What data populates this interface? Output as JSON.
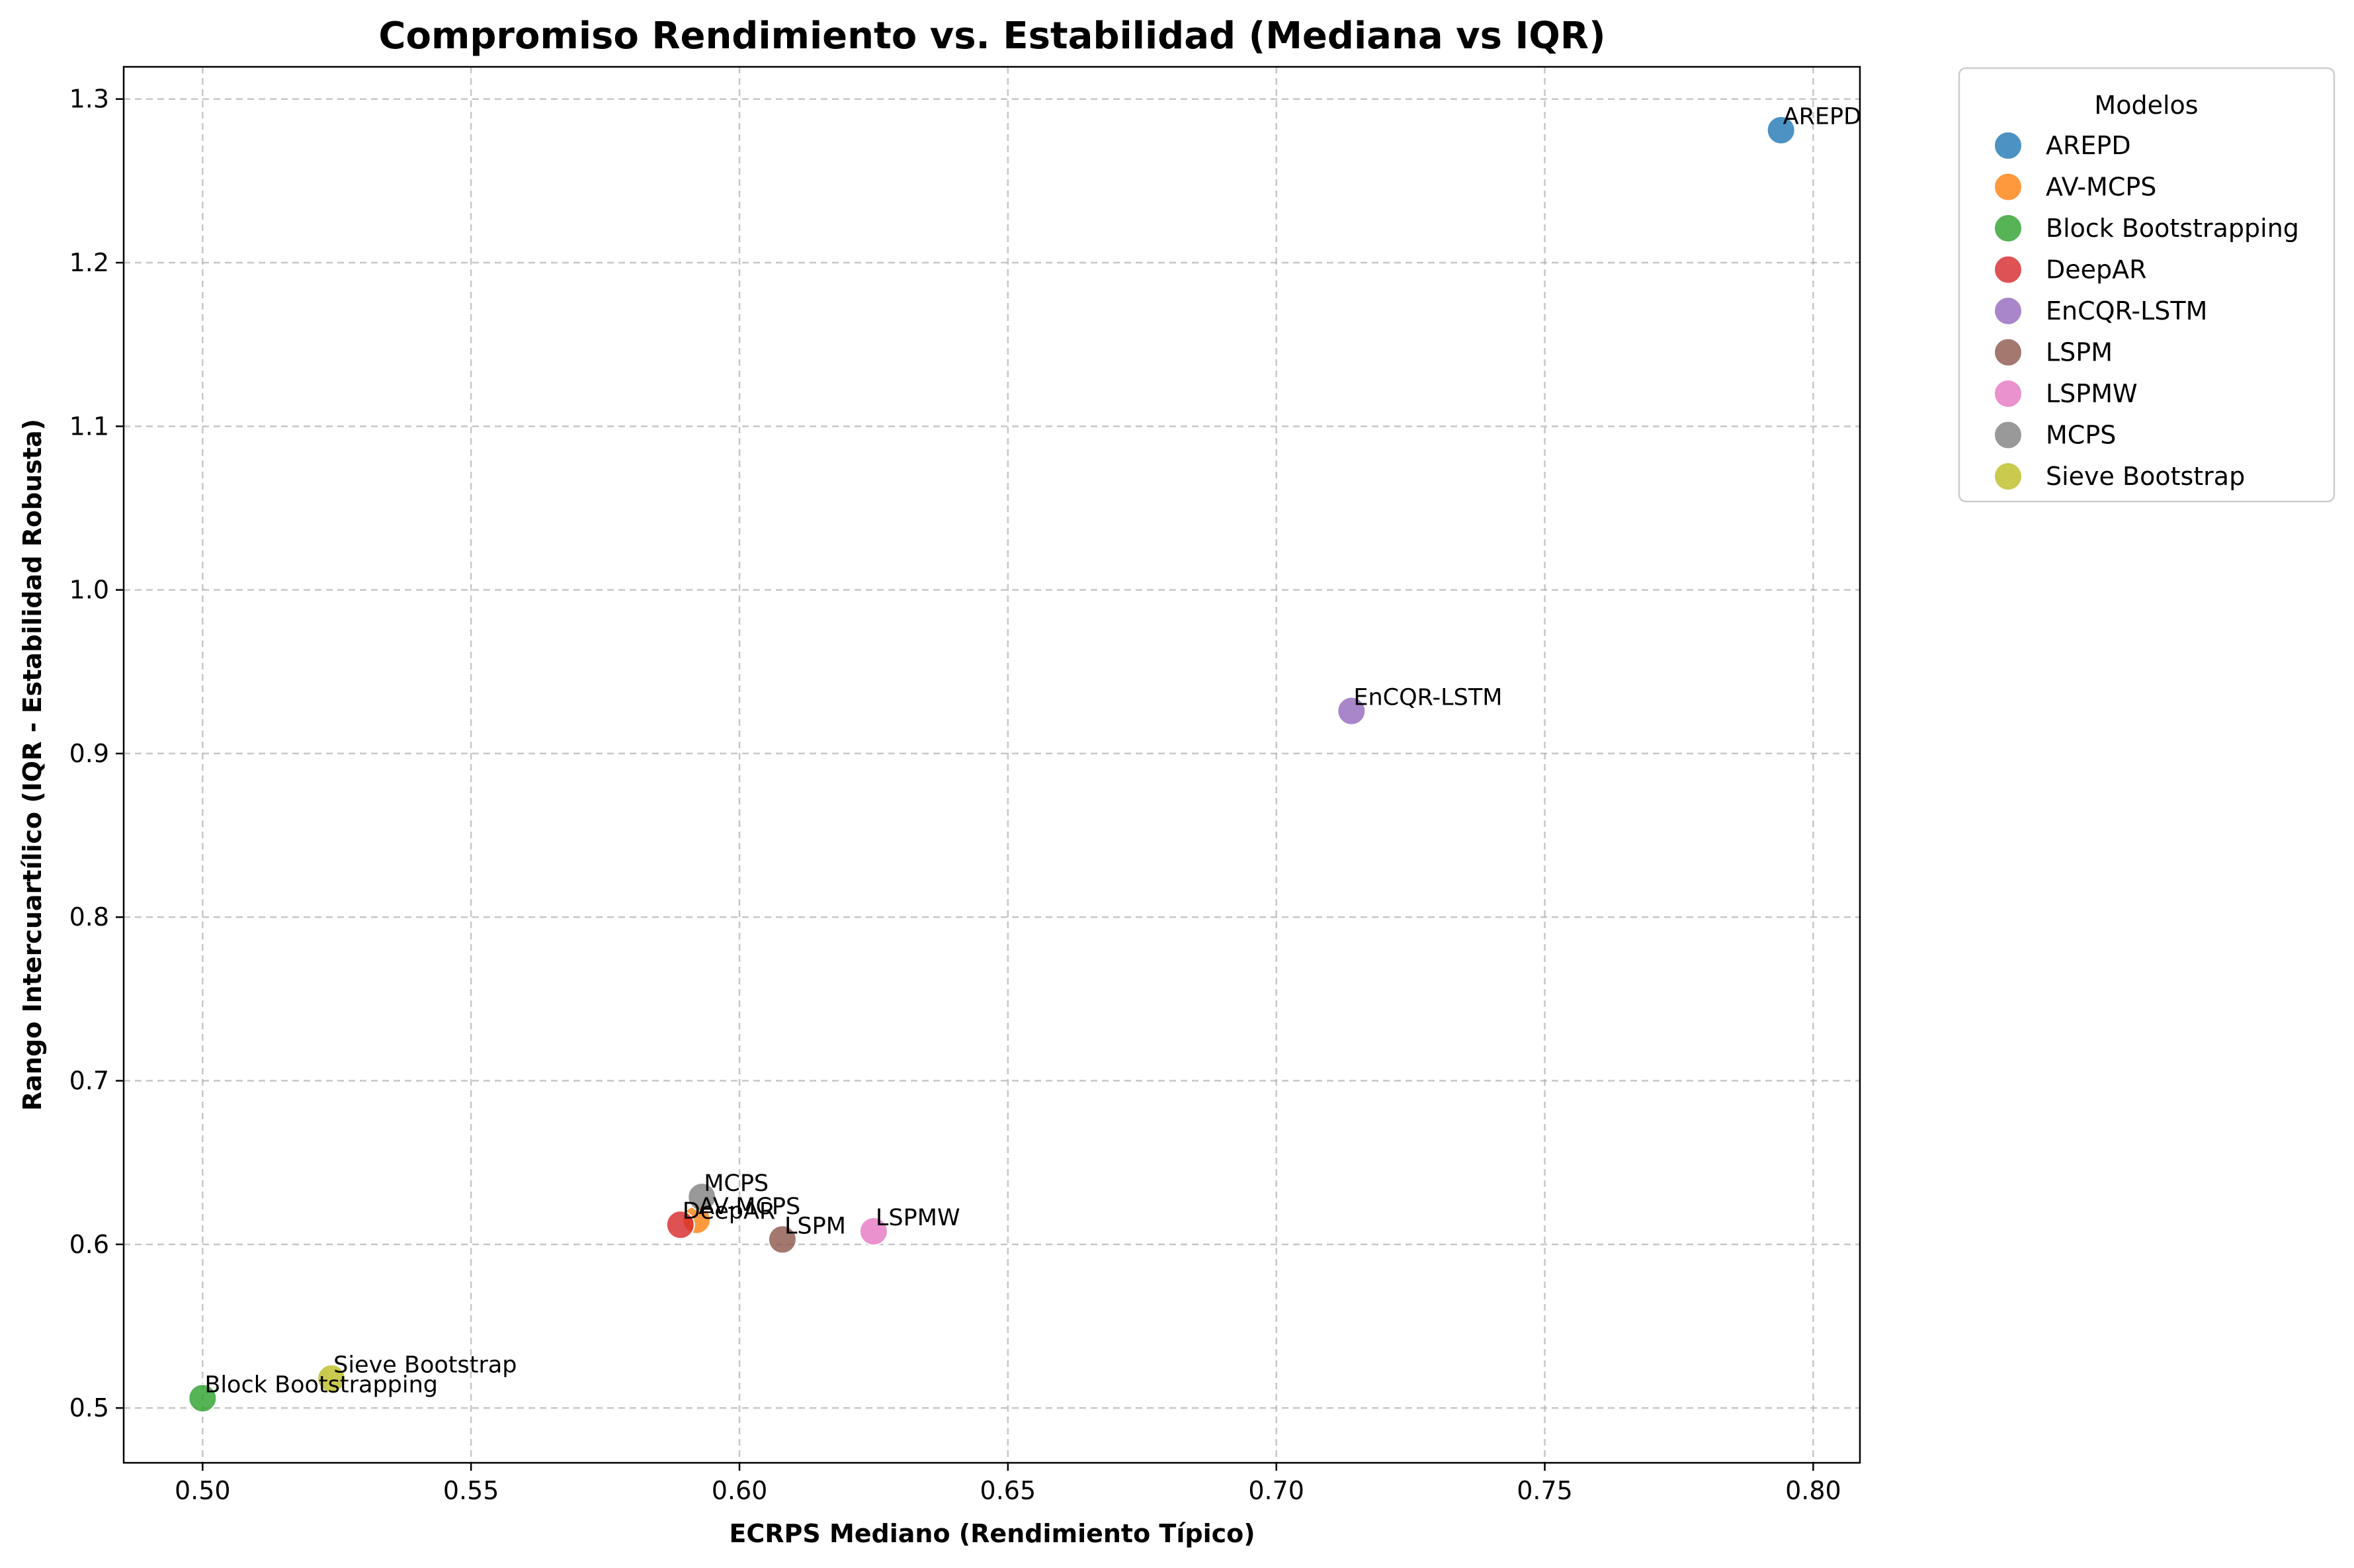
{
  "chart_data": {
    "type": "scatter",
    "title": "Compromiso Rendimiento vs. Estabilidad (Mediana vs IQR)",
    "xlabel": "ECRPS Mediano (Rendimiento Típico)",
    "ylabel": "Rango Intercuartílico (IQR - Estabilidad Robusta)",
    "xlim": [
      0.4853,
      0.8087
    ],
    "ylim": [
      0.4665,
      1.3197
    ],
    "xticks": [
      0.5,
      0.55,
      0.6,
      0.65,
      0.7,
      0.75,
      0.8
    ],
    "xtick_labels": [
      "0.50",
      "0.55",
      "0.60",
      "0.65",
      "0.70",
      "0.75",
      "0.80"
    ],
    "yticks": [
      0.5,
      0.6,
      0.7,
      0.8,
      0.9,
      1.0,
      1.1,
      1.2,
      1.3
    ],
    "ytick_labels": [
      "0.5",
      "0.6",
      "0.7",
      "0.8",
      "0.9",
      "1.0",
      "1.1",
      "1.2",
      "1.3"
    ],
    "grid": true,
    "legend_title": "Modelos",
    "legend_position": "outside-top-right",
    "series": [
      {
        "name": "AREPD",
        "x": 0.794,
        "y": 1.281,
        "color": "#1f77b4"
      },
      {
        "name": "AV-MCPS",
        "x": 0.592,
        "y": 0.615,
        "color": "#ff7f0e"
      },
      {
        "name": "Block Bootstrapping",
        "x": 0.5,
        "y": 0.506,
        "color": "#2ca02c"
      },
      {
        "name": "DeepAR",
        "x": 0.589,
        "y": 0.612,
        "color": "#d62728"
      },
      {
        "name": "EnCQR-LSTM",
        "x": 0.714,
        "y": 0.926,
        "color": "#9467bd"
      },
      {
        "name": "LSPM",
        "x": 0.608,
        "y": 0.603,
        "color": "#8c564b"
      },
      {
        "name": "LSPMW",
        "x": 0.625,
        "y": 0.608,
        "color": "#e377c2"
      },
      {
        "name": "MCPS",
        "x": 0.593,
        "y": 0.629,
        "color": "#7f7f7f"
      },
      {
        "name": "Sieve Bootstrap",
        "x": 0.524,
        "y": 0.518,
        "color": "#bcbd22"
      }
    ]
  }
}
